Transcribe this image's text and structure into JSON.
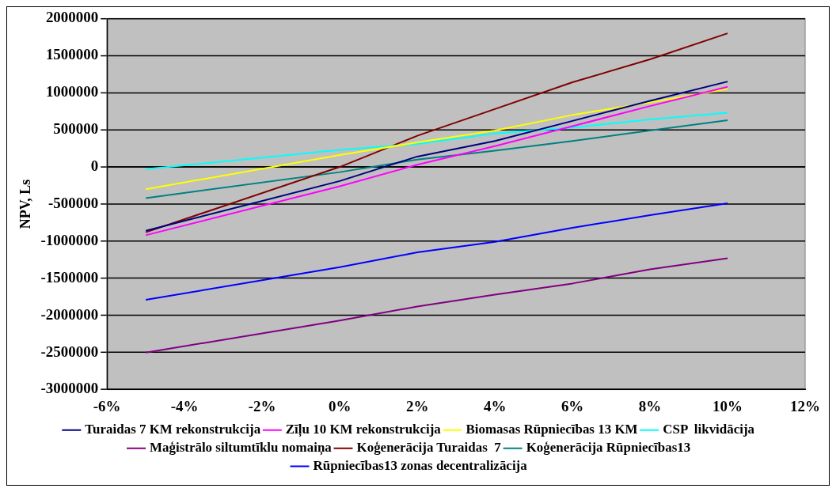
{
  "chart_data": {
    "type": "line",
    "ylabel": "NPV, Ls",
    "x": [
      -5,
      0,
      2,
      4,
      6,
      8,
      10
    ],
    "xlim": [
      -6,
      12
    ],
    "xticks": [
      {
        "value": -6,
        "label": "-6%"
      },
      {
        "value": -4,
        "label": "-4%"
      },
      {
        "value": -2,
        "label": "-2%"
      },
      {
        "value": 0,
        "label": "0%"
      },
      {
        "value": 2,
        "label": "2%"
      },
      {
        "value": 4,
        "label": "4%"
      },
      {
        "value": 6,
        "label": "6%"
      },
      {
        "value": 8,
        "label": "8%"
      },
      {
        "value": 10,
        "label": "10%"
      },
      {
        "value": 12,
        "label": "12%"
      }
    ],
    "ylim": [
      -3000000,
      2000000
    ],
    "yticks": [
      -3000000,
      -2500000,
      -2000000,
      -1500000,
      -1000000,
      -500000,
      0,
      500000,
      1000000,
      1500000,
      2000000
    ],
    "grid": "y",
    "legend": "bottom",
    "marker": "none",
    "series": [
      {
        "name": "Turaidas 7 KM rekonstrukcija",
        "color": "#000080",
        "values": [
          -860000,
          -190000,
          140000,
          350000,
          620000,
          890000,
          1150000
        ]
      },
      {
        "name": "Zīļu 10 KM rekonstrukcija",
        "color": "#ff00ff",
        "values": [
          -920000,
          -260000,
          30000,
          280000,
          550000,
          820000,
          1080000
        ]
      },
      {
        "name": "Biomasas Rūpniecības 13 KM",
        "color": "#ffff00",
        "values": [
          -300000,
          160000,
          330000,
          490000,
          700000,
          870000,
          1050000
        ]
      },
      {
        "name": "CSP  likvidācija",
        "color": "#00ffff",
        "values": [
          -30000,
          230000,
          310000,
          450000,
          530000,
          640000,
          730000
        ]
      },
      {
        "name": "Maģistrālo siltumtīklu nomaiņa",
        "color": "#800080",
        "values": [
          -2500000,
          -2070000,
          -1880000,
          -1720000,
          -1570000,
          -1380000,
          -1230000
        ]
      },
      {
        "name": "Koģenerācija Turaidas  7",
        "color": "#800000",
        "values": [
          -880000,
          0,
          420000,
          780000,
          1140000,
          1450000,
          1800000
        ]
      },
      {
        "name": "Koģenerācija Rūpniecības13",
        "color": "#008080",
        "values": [
          -420000,
          -70000,
          100000,
          220000,
          350000,
          490000,
          630000
        ]
      },
      {
        "name": "Rūpniecības13 zonas decentralizācija",
        "color": "#0000ff",
        "values": [
          -1790000,
          -1350000,
          -1150000,
          -1010000,
          -820000,
          -650000,
          -490000
        ]
      }
    ]
  }
}
